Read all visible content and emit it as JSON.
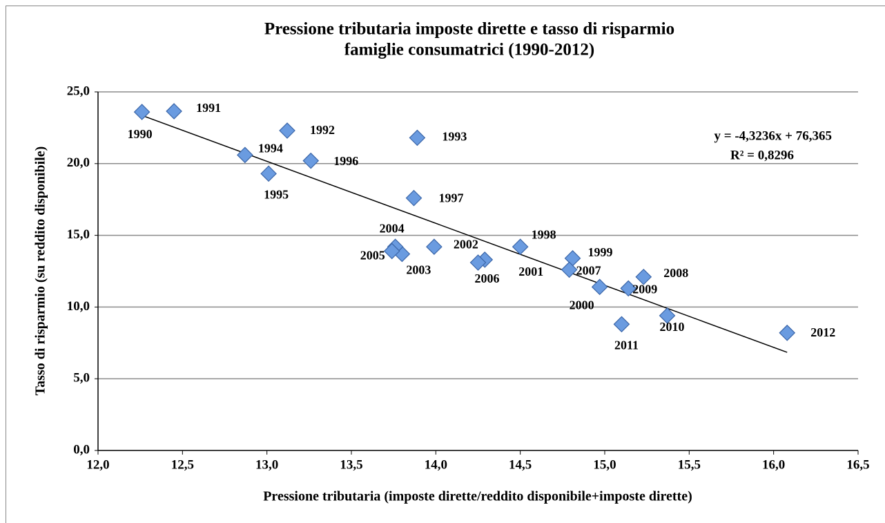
{
  "chart_data": {
    "type": "scatter",
    "title": "Pressione tributaria imposte dirette e tasso di risparmio",
    "subtitle": "famiglie consumatrici (1990-2012)",
    "x_label": "Pressione tributaria (imposte dirette/reddito disponibile+imposte dirette)",
    "y_label": "Tasso di risparmio (su reddito disponibile)",
    "point_labels": [
      "1990",
      "1991",
      "1992",
      "1993",
      "1994",
      "1995",
      "1996",
      "1997",
      "1998",
      "1999",
      "2000",
      "2001",
      "2002",
      "2003",
      "2004",
      "2005",
      "2006",
      "2007",
      "2008",
      "2009",
      "2010",
      "2011",
      "2012"
    ],
    "x": [
      12.26,
      12.45,
      13.12,
      13.89,
      12.87,
      13.01,
      13.26,
      13.87,
      14.5,
      14.81,
      14.97,
      14.29,
      13.99,
      13.8,
      13.76,
      13.74,
      14.25,
      14.79,
      15.23,
      15.14,
      15.37,
      15.1,
      16.08
    ],
    "values": [
      23.6,
      23.65,
      22.3,
      21.8,
      20.6,
      19.3,
      20.2,
      17.6,
      14.2,
      13.4,
      11.4,
      13.3,
      14.2,
      13.7,
      14.2,
      13.9,
      13.1,
      12.6,
      12.1,
      11.3,
      9.4,
      8.8,
      8.2
    ],
    "color": "#6a9be0",
    "trendline": {
      "label": "y = -4,3236x + 76,365",
      "r2_label": "R² = 0,8296",
      "slope": -4.3236,
      "intercept": 76.365
    },
    "xlim": [
      12.0,
      16.5
    ],
    "ylim": [
      0.0,
      25.0
    ],
    "xticks": [
      {
        "value": 12.0,
        "label": "12,0"
      },
      {
        "value": 12.5,
        "label": "12,5"
      },
      {
        "value": 13.0,
        "label": "13,0"
      },
      {
        "value": 13.5,
        "label": "13,5"
      },
      {
        "value": 14.0,
        "label": "14,0"
      },
      {
        "value": 14.5,
        "label": "14,5"
      },
      {
        "value": 15.0,
        "label": "15,0"
      },
      {
        "value": 15.5,
        "label": "15,5"
      },
      {
        "value": 16.0,
        "label": "16,0"
      },
      {
        "value": 16.5,
        "label": "16,5"
      }
    ],
    "yticks": [
      {
        "value": 0.0,
        "label": "0,0"
      },
      {
        "value": 5.0,
        "label": "5,0"
      },
      {
        "value": 10.0,
        "label": "10,0"
      },
      {
        "value": 15.0,
        "label": "15,0"
      },
      {
        "value": 20.0,
        "label": "20,0"
      },
      {
        "value": 25.0,
        "label": "25,0"
      }
    ],
    "grid": true
  }
}
